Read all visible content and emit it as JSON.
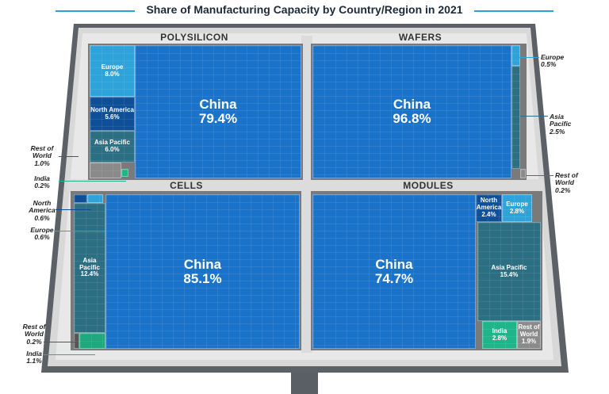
{
  "title": "Share of Manufacturing Capacity by Country/Region in 2021",
  "colors": {
    "china": "#1a73c9",
    "europe": "#2ea3d9",
    "north_america": "#0e4f97",
    "asia_pacific": "#2c6e82",
    "india": "#1fb58a",
    "rest_of_world": "#8a8a8a",
    "accent": "#29a3d6"
  },
  "chart_data": {
    "type": "treemap",
    "title": "Share of Manufacturing Capacity by Country/Region in 2021",
    "panels": [
      {
        "name": "POLYSILICON",
        "segments": [
          {
            "label": "China",
            "value": "79.4%"
          },
          {
            "label": "Europe",
            "value": "8.0%"
          },
          {
            "label": "North America",
            "value": "5.6%"
          },
          {
            "label": "Asia Pacific",
            "value": "6.0%"
          },
          {
            "label": "Rest of World",
            "value": "1.0%"
          },
          {
            "label": "India",
            "value": "0.2%"
          }
        ]
      },
      {
        "name": "WAFERS",
        "segments": [
          {
            "label": "China",
            "value": "96.8%"
          },
          {
            "label": "Europe",
            "value": "0.5%"
          },
          {
            "label": "Asia Pacific",
            "value": "2.5%"
          },
          {
            "label": "Rest of World",
            "value": "0.2%"
          }
        ]
      },
      {
        "name": "CELLS",
        "segments": [
          {
            "label": "China",
            "value": "85.1%"
          },
          {
            "label": "North America",
            "value": "0.6%"
          },
          {
            "label": "Europe",
            "value": "0.6%"
          },
          {
            "label": "Asia Pacific",
            "value": "12.4%"
          },
          {
            "label": "Rest of World",
            "value": "0.2%"
          },
          {
            "label": "India",
            "value": "1.1%"
          }
        ]
      },
      {
        "name": "MODULES",
        "segments": [
          {
            "label": "China",
            "value": "74.7%"
          },
          {
            "label": "North America",
            "value": "2.4%"
          },
          {
            "label": "Europe",
            "value": "2.8%"
          },
          {
            "label": "Asia Pacific",
            "value": "15.4%"
          },
          {
            "label": "India",
            "value": "2.8%"
          },
          {
            "label": "Rest of World",
            "value": "1.9%"
          }
        ]
      }
    ]
  }
}
